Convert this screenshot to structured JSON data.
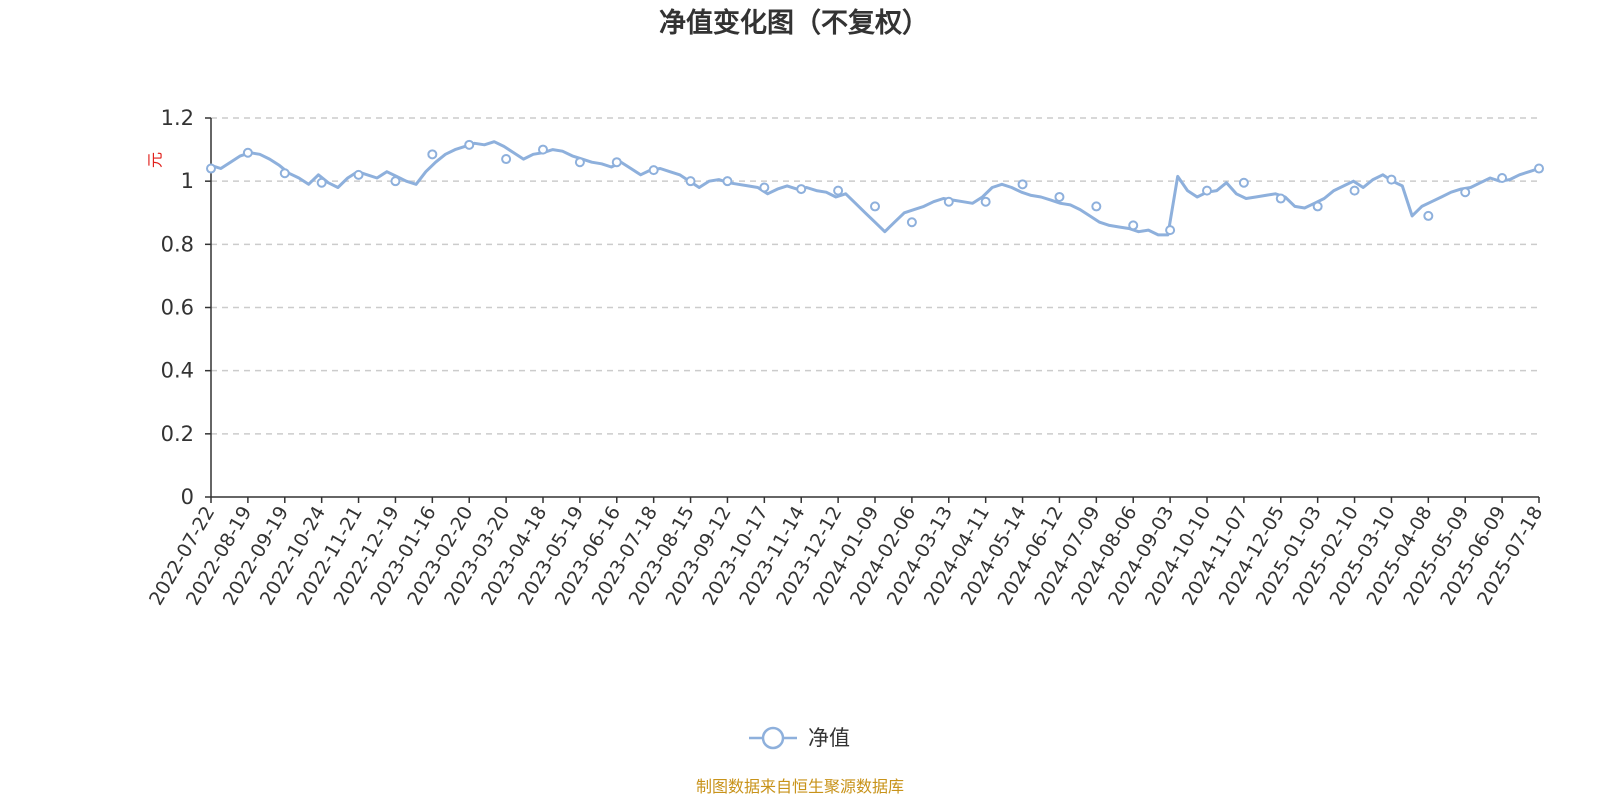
{
  "chart_data": {
    "type": "line",
    "title": "净值变化图（不复权）",
    "ylabel": "元",
    "ylim": [
      0,
      1.2
    ],
    "yticks": [
      "0",
      "0.2",
      "0.4",
      "0.6",
      "0.8",
      "1",
      "1.2"
    ],
    "grid": true,
    "legend_position": "bottom-center",
    "x_tick_labels": [
      "2022-07-22",
      "2022-08-19",
      "2022-09-19",
      "2022-10-24",
      "2022-11-21",
      "2022-12-19",
      "2023-01-16",
      "2023-02-20",
      "2023-03-20",
      "2023-04-18",
      "2023-05-19",
      "2023-06-16",
      "2023-07-18",
      "2023-08-15",
      "2023-09-12",
      "2023-10-17",
      "2023-11-14",
      "2023-12-12",
      "2024-01-09",
      "2024-02-06",
      "2024-03-13",
      "2024-04-11",
      "2024-05-14",
      "2024-06-12",
      "2024-07-09",
      "2024-08-06",
      "2024-09-03",
      "2024-10-10",
      "2024-11-07",
      "2024-12-05",
      "2025-01-03",
      "2025-02-10",
      "2025-03-10",
      "2025-04-08",
      "2025-05-09",
      "2025-06-09",
      "2025-07-18"
    ],
    "series": [
      {
        "name": "净值",
        "color": "#8eb0dc",
        "values": [
          1.04,
          1.09,
          1.025,
          0.995,
          1.02,
          1.0,
          1.085,
          1.115,
          1.07,
          1.1,
          1.06,
          1.06,
          1.035,
          1.0,
          1.0,
          0.98,
          0.975,
          0.97,
          0.92,
          0.87,
          0.935,
          0.935,
          0.99,
          0.95,
          0.92,
          0.86,
          0.845,
          0.97,
          0.995,
          0.945,
          0.92,
          0.97,
          1.005,
          0.89,
          0.965,
          1.01,
          1.04
        ],
        "detail": [
          1.05,
          1.04,
          1.06,
          1.08,
          1.09,
          1.085,
          1.07,
          1.05,
          1.025,
          1.01,
          0.99,
          1.02,
          0.995,
          0.98,
          1.01,
          1.03,
          1.02,
          1.01,
          1.03,
          1.015,
          1.0,
          0.99,
          1.03,
          1.06,
          1.085,
          1.1,
          1.11,
          1.12,
          1.115,
          1.125,
          1.11,
          1.09,
          1.07,
          1.085,
          1.09,
          1.1,
          1.095,
          1.08,
          1.07,
          1.06,
          1.055,
          1.045,
          1.06,
          1.04,
          1.02,
          1.035,
          1.04,
          1.03,
          1.02,
          1.0,
          0.98,
          1.0,
          1.005,
          0.995,
          0.99,
          0.985,
          0.98,
          0.96,
          0.975,
          0.985,
          0.975,
          0.98,
          0.97,
          0.965,
          0.95,
          0.96,
          0.93,
          0.9,
          0.87,
          0.84,
          0.87,
          0.9,
          0.91,
          0.92,
          0.935,
          0.945,
          0.94,
          0.935,
          0.93,
          0.95,
          0.98,
          0.99,
          0.98,
          0.965,
          0.955,
          0.95,
          0.94,
          0.93,
          0.925,
          0.91,
          0.89,
          0.87,
          0.86,
          0.855,
          0.85,
          0.84,
          0.845,
          0.83,
          0.83,
          1.015,
          0.97,
          0.95,
          0.965,
          0.97,
          0.995,
          0.96,
          0.945,
          0.95,
          0.955,
          0.96,
          0.95,
          0.92,
          0.915,
          0.93,
          0.945,
          0.97,
          0.985,
          1.0,
          0.98,
          1.005,
          1.02,
          1.0,
          0.985,
          0.89,
          0.92,
          0.935,
          0.95,
          0.965,
          0.975,
          0.98,
          0.995,
          1.01,
          1.0,
          1.005,
          1.02,
          1.03,
          1.04
        ]
      }
    ]
  },
  "legend": {
    "label": "净值"
  },
  "source_note": "制图数据来自恒生聚源数据库"
}
